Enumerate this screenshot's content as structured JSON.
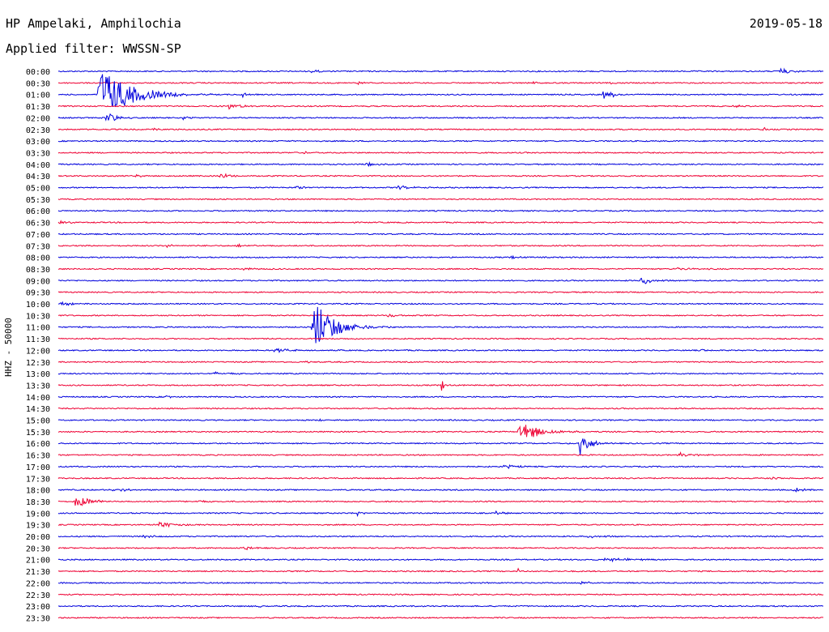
{
  "header": {
    "station": "HP Ampelaki, Amphilochia",
    "date": "2019-05-18",
    "filter": "Applied filter: WWSSN-SP"
  },
  "chart_data": {
    "type": "line",
    "title": "HP Ampelaki, Amphilochia",
    "ylabel": "HHZ - 50000",
    "colors": {
      "odd": "#0000dd",
      "even": "#ee0033"
    },
    "rows": [
      {
        "label": "00:00",
        "events": [
          {
            "x": 0.33,
            "amp": 3,
            "dur": 0.015
          },
          {
            "x": 0.94,
            "amp": 4,
            "dur": 0.03
          }
        ]
      },
      {
        "label": "00:30",
        "events": [
          {
            "x": 0.39,
            "amp": 3,
            "dur": 0.01
          },
          {
            "x": 0.62,
            "amp": 2,
            "dur": 0.01
          },
          {
            "x": 0.72,
            "amp": 2,
            "dur": 0.01
          }
        ]
      },
      {
        "label": "01:00",
        "events": [
          {
            "x": 0.05,
            "amp": 40,
            "dur": 0.07
          },
          {
            "x": 0.24,
            "amp": 5,
            "dur": 0.01
          },
          {
            "x": 0.71,
            "amp": 8,
            "dur": 0.025
          }
        ]
      },
      {
        "label": "01:30",
        "events": [
          {
            "x": 0.22,
            "amp": 5,
            "dur": 0.03
          },
          {
            "x": 0.88,
            "amp": 2,
            "dur": 0.02
          }
        ]
      },
      {
        "label": "02:00",
        "events": [
          {
            "x": 0.06,
            "amp": 12,
            "dur": 0.02
          },
          {
            "x": 0.16,
            "amp": 2,
            "dur": 0.03
          }
        ]
      },
      {
        "label": "02:30",
        "events": [
          {
            "x": 0.12,
            "amp": 2,
            "dur": 0.02
          },
          {
            "x": 0.92,
            "amp": 4,
            "dur": 0.01
          }
        ]
      },
      {
        "label": "03:00",
        "events": []
      },
      {
        "label": "03:30",
        "events": [
          {
            "x": 0.32,
            "amp": 2,
            "dur": 0.01
          }
        ]
      },
      {
        "label": "04:00",
        "events": [
          {
            "x": 0.4,
            "amp": 3,
            "dur": 0.02
          }
        ]
      },
      {
        "label": "04:30",
        "events": [
          {
            "x": 0.1,
            "amp": 3,
            "dur": 0.01
          },
          {
            "x": 0.21,
            "amp": 5,
            "dur": 0.02
          }
        ]
      },
      {
        "label": "05:00",
        "events": [
          {
            "x": 0.31,
            "amp": 3,
            "dur": 0.02
          },
          {
            "x": 0.44,
            "amp": 3,
            "dur": 0.03
          }
        ]
      },
      {
        "label": "05:30",
        "events": []
      },
      {
        "label": "06:00",
        "events": []
      },
      {
        "label": "06:30",
        "events": [
          {
            "x": 0.0,
            "amp": 3,
            "dur": 0.02
          }
        ]
      },
      {
        "label": "07:00",
        "events": []
      },
      {
        "label": "07:30",
        "events": [
          {
            "x": 0.14,
            "amp": 4,
            "dur": 0.01
          },
          {
            "x": 0.23,
            "amp": 2,
            "dur": 0.03
          }
        ]
      },
      {
        "label": "08:00",
        "events": [
          {
            "x": 0.59,
            "amp": 2,
            "dur": 0.02
          }
        ]
      },
      {
        "label": "08:30",
        "events": [
          {
            "x": 0.24,
            "amp": 3,
            "dur": 0.02
          },
          {
            "x": 0.8,
            "amp": 2,
            "dur": 0.05
          }
        ]
      },
      {
        "label": "09:00",
        "events": [
          {
            "x": 0.76,
            "amp": 6,
            "dur": 0.025
          }
        ]
      },
      {
        "label": "09:30",
        "events": []
      },
      {
        "label": "10:00",
        "events": [
          {
            "x": 0.0,
            "amp": 2,
            "dur": 0.04
          }
        ]
      },
      {
        "label": "10:30",
        "events": [
          {
            "x": 0.43,
            "amp": 4,
            "dur": 0.015
          }
        ]
      },
      {
        "label": "11:00",
        "events": [
          {
            "x": 0.33,
            "amp": 40,
            "dur": 0.05
          }
        ]
      },
      {
        "label": "11:30",
        "events": []
      },
      {
        "label": "12:00",
        "events": [
          {
            "x": 0.28,
            "amp": 3,
            "dur": 0.04
          },
          {
            "x": 0.84,
            "amp": 2,
            "dur": 0.01
          }
        ]
      },
      {
        "label": "12:30",
        "events": [
          {
            "x": 0.32,
            "amp": 2,
            "dur": 0.01
          }
        ]
      },
      {
        "label": "13:00",
        "events": [
          {
            "x": 0.2,
            "amp": 2,
            "dur": 0.04
          }
        ]
      },
      {
        "label": "13:30",
        "events": [
          {
            "x": 0.5,
            "amp": 10,
            "dur": 0.008
          }
        ]
      },
      {
        "label": "14:00",
        "events": [
          {
            "x": 0.14,
            "amp": 3,
            "dur": 0.01
          }
        ]
      },
      {
        "label": "14:30",
        "events": []
      },
      {
        "label": "15:00",
        "events": [
          {
            "x": 0.34,
            "amp": 3,
            "dur": 0.01
          }
        ]
      },
      {
        "label": "15:30",
        "events": [
          {
            "x": 0.6,
            "amp": 15,
            "dur": 0.05
          }
        ]
      },
      {
        "label": "16:00",
        "events": [
          {
            "x": 0.68,
            "amp": 24,
            "dur": 0.02
          }
        ]
      },
      {
        "label": "16:30",
        "events": [
          {
            "x": 0.81,
            "amp": 3,
            "dur": 0.03
          }
        ]
      },
      {
        "label": "17:00",
        "events": [
          {
            "x": 0.58,
            "amp": 3,
            "dur": 0.03
          }
        ]
      },
      {
        "label": "17:30",
        "events": [
          {
            "x": 0.74,
            "amp": 3,
            "dur": 0.01
          },
          {
            "x": 0.93,
            "amp": 4,
            "dur": 0.01
          }
        ]
      },
      {
        "label": "18:00",
        "events": [
          {
            "x": 0.07,
            "amp": 3,
            "dur": 0.03
          },
          {
            "x": 0.96,
            "amp": 3,
            "dur": 0.03
          }
        ]
      },
      {
        "label": "18:30",
        "events": [
          {
            "x": 0.02,
            "amp": 10,
            "dur": 0.035
          },
          {
            "x": 0.18,
            "amp": 2,
            "dur": 0.02
          }
        ]
      },
      {
        "label": "19:00",
        "events": [
          {
            "x": 0.39,
            "amp": 4,
            "dur": 0.01
          },
          {
            "x": 0.57,
            "amp": 3,
            "dur": 0.02
          }
        ]
      },
      {
        "label": "19:30",
        "events": [
          {
            "x": 0.13,
            "amp": 5,
            "dur": 0.03
          }
        ]
      },
      {
        "label": "20:00",
        "events": [
          {
            "x": 0.11,
            "amp": 3,
            "dur": 0.02
          },
          {
            "x": 0.69,
            "amp": 2,
            "dur": 0.04
          }
        ]
      },
      {
        "label": "20:30",
        "events": [
          {
            "x": 0.24,
            "amp": 3,
            "dur": 0.02
          }
        ]
      },
      {
        "label": "21:00",
        "events": [
          {
            "x": 0.71,
            "amp": 3,
            "dur": 0.06
          }
        ]
      },
      {
        "label": "21:30",
        "events": [
          {
            "x": 0.6,
            "amp": 4,
            "dur": 0.01
          }
        ]
      },
      {
        "label": "22:00",
        "events": [
          {
            "x": 0.68,
            "amp": 3,
            "dur": 0.02
          }
        ]
      },
      {
        "label": "22:30",
        "events": []
      },
      {
        "label": "23:00",
        "events": [
          {
            "x": 0.26,
            "amp": 3,
            "dur": 0.02
          }
        ]
      },
      {
        "label": "23:30",
        "events": []
      }
    ]
  }
}
